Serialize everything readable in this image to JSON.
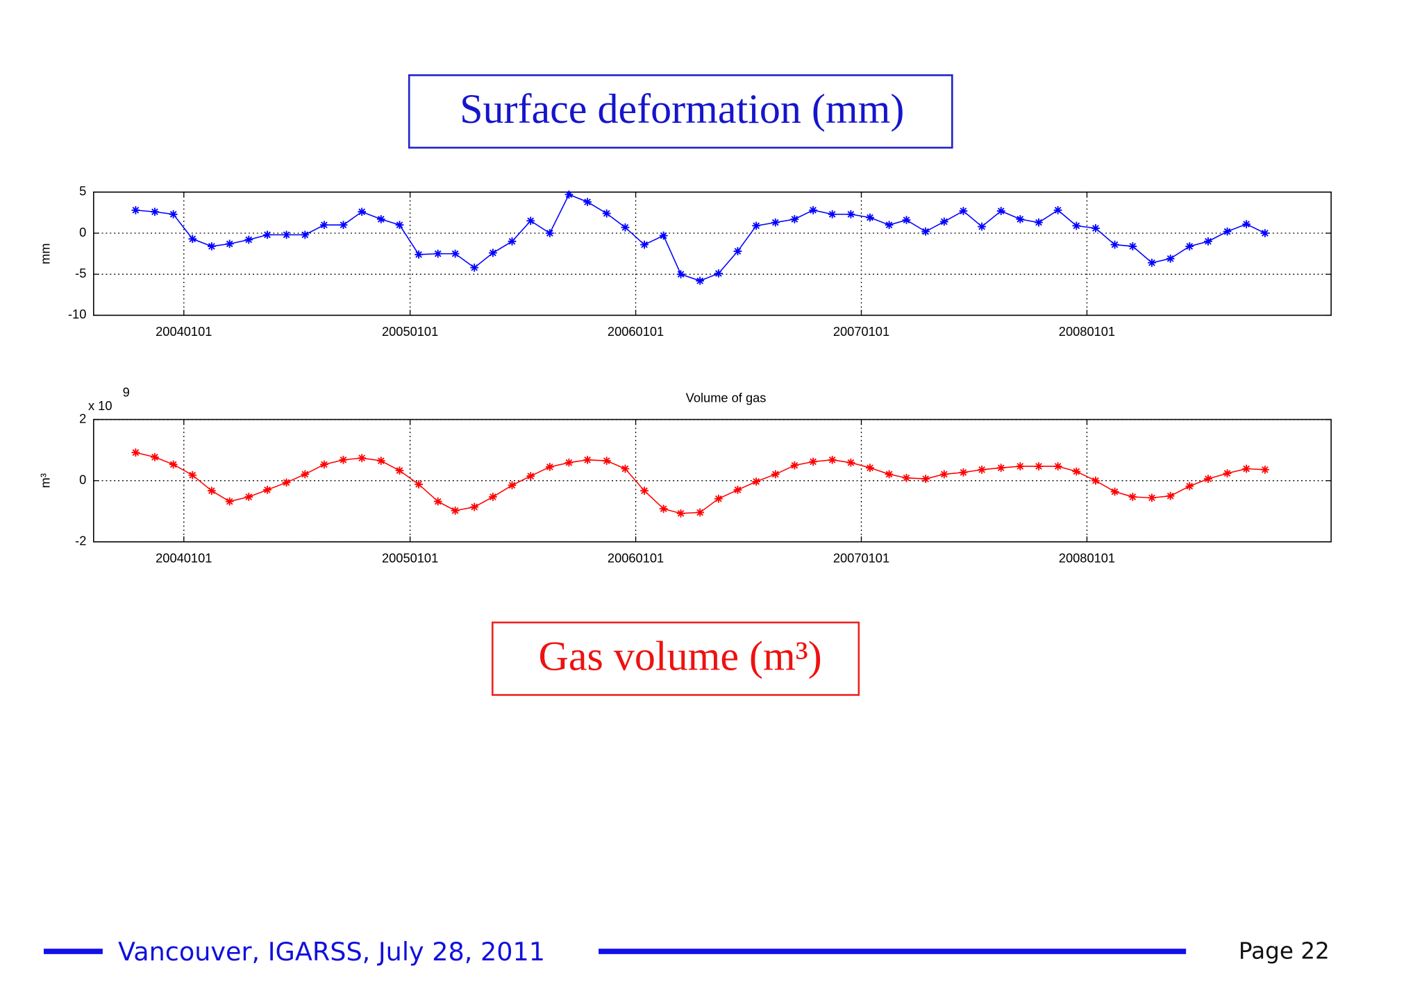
{
  "slide": {
    "heading": "Surface deformation (mm)",
    "caption": "Gas volume (m³)",
    "footer": "Vancouver, IGARSS, July 28, 2011",
    "page": "Page 22"
  },
  "chart_data": [
    {
      "type": "line",
      "ylabel": "mm",
      "color": "#0000ff",
      "grid": true,
      "x": [
        "2003-10-15",
        "2003-11-15",
        "2003-12-15",
        "2004-01-15",
        "2004-02-15",
        "2004-03-15",
        "2004-04-15",
        "2004-05-15",
        "2004-06-15",
        "2004-07-15",
        "2004-08-15",
        "2004-09-15",
        "2004-10-15",
        "2004-11-15",
        "2004-12-15",
        "2005-01-15",
        "2005-02-15",
        "2005-03-15",
        "2005-04-15",
        "2005-05-15",
        "2005-06-15",
        "2005-07-15",
        "2005-08-15",
        "2005-09-15",
        "2005-10-15",
        "2005-11-15",
        "2005-12-15",
        "2006-01-15",
        "2006-02-15",
        "2006-03-15",
        "2006-04-15",
        "2006-05-15",
        "2006-06-15",
        "2006-07-15",
        "2006-08-15",
        "2006-09-15",
        "2006-10-15",
        "2006-11-15",
        "2006-12-15",
        "2007-01-15",
        "2007-02-15",
        "2007-03-15",
        "2007-04-15",
        "2007-05-15",
        "2007-06-15",
        "2007-07-15",
        "2007-08-15",
        "2007-09-15",
        "2007-10-15",
        "2007-11-15",
        "2007-12-15",
        "2008-01-15",
        "2008-02-15",
        "2008-03-15",
        "2008-04-15",
        "2008-05-15",
        "2008-06-15",
        "2008-07-15",
        "2008-08-15",
        "2008-09-15",
        "2008-10-15"
      ],
      "values": [
        2.8,
        2.6,
        2.3,
        -0.7,
        -1.6,
        -1.3,
        -0.8,
        -0.2,
        -0.2,
        -0.2,
        1.0,
        1.0,
        2.6,
        1.7,
        1.0,
        -2.6,
        -2.5,
        -2.5,
        -4.2,
        -2.4,
        -1.0,
        1.5,
        0,
        4.7,
        3.8,
        2.4,
        0.7,
        -1.4,
        -0.3,
        -5.0,
        -5.8,
        -4.9,
        -2.2,
        0.9,
        1.3,
        1.7,
        2.8,
        2.3,
        2.3,
        1.9,
        1.0,
        1.6,
        0.2,
        1.4,
        2.7,
        0.8,
        2.7,
        1.7,
        1.3,
        2.8,
        0.9,
        0.6,
        -1.4,
        -1.6,
        -3.6,
        -3.1,
        -1.6,
        -1.0,
        0.2,
        1.1,
        0
      ],
      "xlim": [
        "2003-08-08",
        "2009-01-30"
      ],
      "xticks": [
        {
          "value": "2004-01-01",
          "label": "20040101"
        },
        {
          "value": "2005-01-01",
          "label": "20050101"
        },
        {
          "value": "2006-01-01",
          "label": "20060101"
        },
        {
          "value": "2007-01-01",
          "label": "20070101"
        },
        {
          "value": "2008-01-01",
          "label": "20080101"
        }
      ],
      "ylim": [
        -10,
        5
      ],
      "yticks": [
        -10,
        -5,
        0,
        5
      ]
    },
    {
      "type": "line",
      "title": "Volume of gas",
      "ylabel": "m³",
      "multiplier": {
        "base": "x 10",
        "exponent": "9"
      },
      "color": "#ff0000",
      "grid": true,
      "x": [
        "2003-10-15",
        "2003-11-15",
        "2003-12-15",
        "2004-01-15",
        "2004-02-15",
        "2004-03-15",
        "2004-04-15",
        "2004-05-15",
        "2004-06-15",
        "2004-07-15",
        "2004-08-15",
        "2004-09-15",
        "2004-10-15",
        "2004-11-15",
        "2004-12-15",
        "2005-01-15",
        "2005-02-15",
        "2005-03-15",
        "2005-04-15",
        "2005-05-15",
        "2005-06-15",
        "2005-07-15",
        "2005-08-15",
        "2005-09-15",
        "2005-10-15",
        "2005-11-15",
        "2005-12-15",
        "2006-01-15",
        "2006-02-15",
        "2006-03-15",
        "2006-04-15",
        "2006-05-15",
        "2006-06-15",
        "2006-07-15",
        "2006-08-15",
        "2006-09-15",
        "2006-10-15",
        "2006-11-15",
        "2006-12-15",
        "2007-01-15",
        "2007-02-15",
        "2007-03-15",
        "2007-04-15",
        "2007-05-15",
        "2007-06-15",
        "2007-07-15",
        "2007-08-15",
        "2007-09-15",
        "2007-10-15",
        "2007-11-15",
        "2007-12-15",
        "2008-01-15",
        "2008-02-15",
        "2008-03-15",
        "2008-04-15",
        "2008-05-15",
        "2008-06-15",
        "2008-07-15",
        "2008-08-15",
        "2008-09-15",
        "2008-10-15"
      ],
      "values": [
        0.92,
        0.77,
        0.53,
        0.18,
        -0.33,
        -0.68,
        -0.53,
        -0.3,
        -0.06,
        0.21,
        0.53,
        0.68,
        0.74,
        0.65,
        0.33,
        -0.12,
        -0.68,
        -0.98,
        -0.86,
        -0.53,
        -0.15,
        0.15,
        0.45,
        0.59,
        0.68,
        0.65,
        0.39,
        -0.33,
        -0.92,
        -1.07,
        -1.04,
        -0.59,
        -0.3,
        -0.03,
        0.21,
        0.5,
        0.62,
        0.68,
        0.59,
        0.42,
        0.21,
        0.09,
        0.06,
        0.21,
        0.27,
        0.36,
        0.42,
        0.47,
        0.47,
        0.47,
        0.3,
        0,
        -0.36,
        -0.53,
        -0.56,
        -0.5,
        -0.18,
        0.06,
        0.24,
        0.39,
        0.36
      ],
      "xlim": [
        "2003-08-08",
        "2009-01-30"
      ],
      "xticks": [
        {
          "value": "2004-01-01",
          "label": "20040101"
        },
        {
          "value": "2005-01-01",
          "label": "20050101"
        },
        {
          "value": "2006-01-01",
          "label": "20060101"
        },
        {
          "value": "2007-01-01",
          "label": "20070101"
        },
        {
          "value": "2008-01-01",
          "label": "20080101"
        }
      ],
      "ylim": [
        -2,
        2
      ],
      "yticks": [
        -2,
        0,
        2
      ]
    }
  ]
}
